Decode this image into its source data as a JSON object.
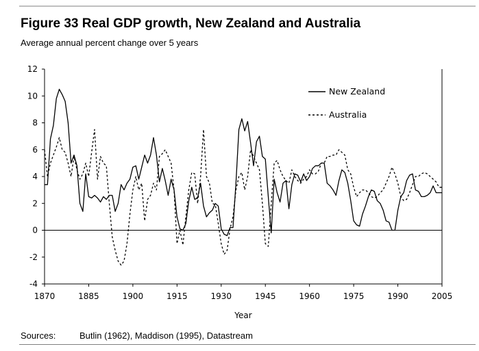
{
  "figure": {
    "title": "Figure 33 Real GDP growth, New Zealand and Australia",
    "subtitle": "Average annual percent change over 5 years",
    "sources_label": "Sources:",
    "sources_text": "Butlin (1962), Maddison (1995), Datastream"
  },
  "chart_data": {
    "type": "line",
    "title": "Figure 33 Real GDP growth, New Zealand and Australia",
    "subtitle": "Average annual percent change over 5 years",
    "xlabel": "Year",
    "ylabel": "",
    "xlim": [
      1870,
      2005
    ],
    "ylim": [
      -4,
      12
    ],
    "xticks": [
      1870,
      1885,
      1900,
      1915,
      1930,
      1945,
      1960,
      1975,
      1990,
      2005
    ],
    "yticks": [
      -4,
      -2,
      0,
      2,
      4,
      6,
      8,
      10,
      12
    ],
    "legend_position": "top-right",
    "series": [
      {
        "name": "New Zealand",
        "style": "solid",
        "x": [
          1870,
          1871,
          1872,
          1873,
          1874,
          1875,
          1876,
          1877,
          1878,
          1879,
          1880,
          1881,
          1882,
          1883,
          1884,
          1885,
          1886,
          1887,
          1888,
          1889,
          1890,
          1891,
          1892,
          1893,
          1894,
          1895,
          1896,
          1897,
          1898,
          1899,
          1900,
          1901,
          1902,
          1903,
          1904,
          1905,
          1906,
          1907,
          1908,
          1909,
          1910,
          1911,
          1912,
          1913,
          1914,
          1915,
          1916,
          1917,
          1918,
          1919,
          1920,
          1921,
          1922,
          1923,
          1924,
          1925,
          1926,
          1927,
          1928,
          1929,
          1930,
          1931,
          1932,
          1933,
          1934,
          1935,
          1936,
          1937,
          1938,
          1939,
          1940,
          1941,
          1942,
          1943,
          1944,
          1945,
          1946,
          1947,
          1948,
          1949,
          1950,
          1951,
          1952,
          1953,
          1954,
          1955,
          1956,
          1957,
          1958,
          1959,
          1960,
          1961,
          1962,
          1963,
          1964,
          1965,
          1966,
          1967,
          1968,
          1969,
          1970,
          1971,
          1972,
          1973,
          1974,
          1975,
          1976,
          1977,
          1978,
          1979,
          1980,
          1981,
          1982,
          1983,
          1984,
          1985,
          1986,
          1987,
          1988,
          1989,
          1990,
          1991,
          1992,
          1993,
          1994,
          1995,
          1996,
          1997,
          1998,
          1999,
          2000,
          2001,
          2002,
          2003,
          2004,
          2005
        ],
        "values": [
          3.4,
          3.4,
          6.8,
          7.8,
          9.8,
          10.5,
          10.1,
          9.6,
          8.0,
          5.0,
          5.6,
          4.8,
          2.0,
          1.4,
          4.2,
          2.5,
          2.4,
          2.6,
          2.4,
          2.1,
          2.5,
          2.3,
          2.6,
          2.6,
          1.4,
          2.0,
          3.4,
          3.0,
          3.5,
          3.8,
          4.7,
          4.8,
          3.8,
          4.7,
          5.6,
          5.0,
          5.6,
          6.9,
          5.6,
          3.6,
          4.6,
          3.7,
          2.6,
          3.8,
          3.0,
          1.0,
          0.1,
          0.0,
          0.5,
          2.2,
          3.2,
          2.3,
          2.4,
          3.5,
          1.8,
          1.0,
          1.3,
          1.5,
          2.0,
          1.8,
          0.1,
          -0.3,
          -0.4,
          0.2,
          0.2,
          3.5,
          7.5,
          8.3,
          7.4,
          8.1,
          6.5,
          4.8,
          6.6,
          7.0,
          5.5,
          5.3,
          2.5,
          -0.2,
          3.8,
          2.8,
          2.1,
          3.5,
          3.7,
          1.6,
          3.4,
          4.2,
          4.1,
          3.6,
          4.2,
          3.7,
          4.0,
          4.6,
          4.8,
          4.8,
          5.0,
          5.0,
          3.5,
          3.3,
          3.0,
          2.6,
          3.7,
          4.5,
          4.3,
          3.5,
          2.2,
          0.7,
          0.4,
          0.3,
          1.2,
          1.8,
          2.5,
          3.0,
          2.9,
          2.2,
          2.0,
          1.5,
          0.7,
          0.6,
          0.0,
          0.0,
          1.5,
          2.5,
          2.8,
          3.7,
          4.1,
          4.2,
          3.0,
          2.9,
          2.5,
          2.5,
          2.6,
          2.8,
          3.3,
          2.8,
          2.8,
          2.8
        ]
      },
      {
        "name": "Australia",
        "style": "dashed",
        "x": [
          1870,
          1871,
          1872,
          1873,
          1874,
          1875,
          1876,
          1877,
          1878,
          1879,
          1880,
          1881,
          1882,
          1883,
          1884,
          1885,
          1886,
          1887,
          1888,
          1889,
          1890,
          1891,
          1892,
          1893,
          1894,
          1895,
          1896,
          1897,
          1898,
          1899,
          1900,
          1901,
          1902,
          1903,
          1904,
          1905,
          1906,
          1907,
          1908,
          1909,
          1910,
          1911,
          1912,
          1913,
          1914,
          1915,
          1916,
          1917,
          1918,
          1919,
          1920,
          1921,
          1922,
          1923,
          1924,
          1925,
          1926,
          1927,
          1928,
          1929,
          1930,
          1931,
          1932,
          1933,
          1934,
          1935,
          1936,
          1937,
          1938,
          1939,
          1940,
          1941,
          1942,
          1943,
          1944,
          1945,
          1946,
          1947,
          1948,
          1949,
          1950,
          1951,
          1952,
          1953,
          1954,
          1955,
          1956,
          1957,
          1958,
          1959,
          1960,
          1961,
          1962,
          1963,
          1964,
          1965,
          1966,
          1967,
          1968,
          1969,
          1970,
          1971,
          1972,
          1973,
          1974,
          1975,
          1976,
          1977,
          1978,
          1979,
          1980,
          1981,
          1982,
          1983,
          1984,
          1985,
          1986,
          1987,
          1988,
          1989,
          1990,
          1991,
          1992,
          1993,
          1994,
          1995,
          1996,
          1997,
          1998,
          1999,
          2000,
          2001,
          2002,
          2003,
          2004,
          2005
        ],
        "values": [
          6.0,
          4.0,
          5.0,
          5.6,
          6.2,
          6.9,
          6.0,
          5.8,
          5.0,
          4.0,
          5.5,
          4.5,
          3.8,
          4.2,
          5.0,
          4.0,
          5.8,
          7.5,
          3.8,
          5.5,
          5.0,
          4.8,
          2.0,
          -0.5,
          -1.5,
          -2.3,
          -2.6,
          -2.3,
          -1.0,
          1.2,
          3.0,
          4.0,
          3.0,
          3.5,
          0.7,
          2.3,
          2.6,
          3.5,
          3.0,
          5.5,
          5.7,
          6.0,
          5.5,
          5.0,
          3.0,
          -1.0,
          0.0,
          -1.1,
          1.0,
          3.0,
          4.3,
          4.2,
          2.0,
          4.0,
          7.5,
          4.0,
          3.5,
          2.0,
          1.9,
          0.5,
          -1.0,
          -1.8,
          -1.5,
          0.1,
          1.0,
          3.0,
          4.0,
          4.3,
          3.0,
          4.0,
          6.0,
          5.5,
          5.0,
          4.5,
          2.0,
          -1.0,
          -1.2,
          2.0,
          5.0,
          5.2,
          4.5,
          4.0,
          3.7,
          3.5,
          4.5,
          4.0,
          3.7,
          3.5,
          3.8,
          4.0,
          4.5,
          4.2,
          4.2,
          4.4,
          5.0,
          5.0,
          5.5,
          5.5,
          5.6,
          5.6,
          6.0,
          5.8,
          5.6,
          4.5,
          4.2,
          3.2,
          2.5,
          2.8,
          3.0,
          3.0,
          2.8,
          2.5,
          2.4,
          2.5,
          2.8,
          3.0,
          3.5,
          4.0,
          4.7,
          4.2,
          3.5,
          2.5,
          2.2,
          2.3,
          2.8,
          3.4,
          4.0,
          4.0,
          4.2,
          4.3,
          4.2,
          4.0,
          3.8,
          3.6,
          3.2,
          3.2
        ]
      }
    ]
  }
}
